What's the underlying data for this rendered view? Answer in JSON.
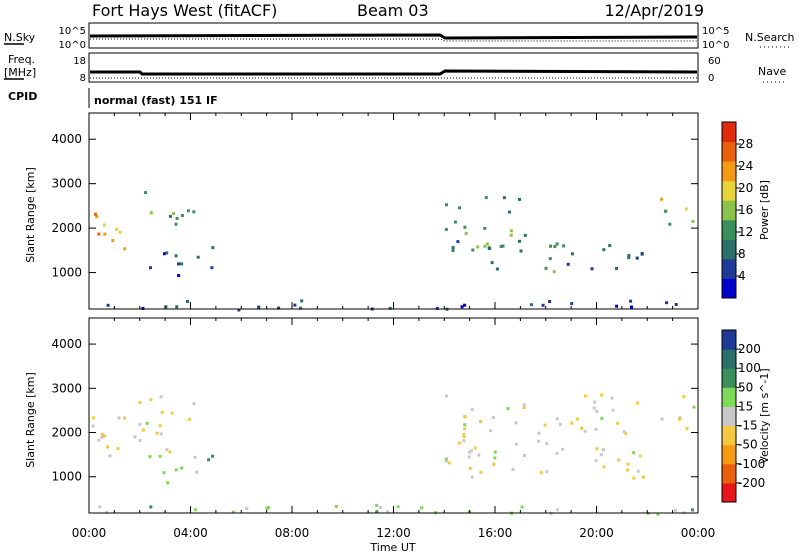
{
  "header": {
    "title": "Fort Hays West (fitACF)",
    "beam": "Beam 03",
    "date": "12/Apr/2019"
  },
  "status_panels": {
    "nsky_label": "N.Sky",
    "nsky_ticks": [
      "10^5",
      "10^0"
    ],
    "nsearch_label": "N.Search",
    "nsearch_ticks": [
      "10^5",
      "10^0"
    ],
    "freq_label_line1": "Freq.",
    "freq_label_line2": "[MHz]",
    "freq_ticks": [
      "18",
      "8"
    ],
    "nave_label": "Nave",
    "nave_ticks": [
      "60",
      "0"
    ],
    "cpid_label": "CPID",
    "cpid_value": "normal (fast) 151 IF"
  },
  "chart_data": [
    {
      "type": "heatmap",
      "name": "power",
      "ylabel": "Slant Range [km]",
      "yticks": [
        "4000",
        "3000",
        "2000",
        "1000"
      ],
      "yvalues": [
        4000,
        3000,
        2000,
        1000
      ],
      "ylim": [
        180,
        4590
      ],
      "xlim": [
        0,
        24
      ],
      "colorbar_label": "Power [dB]",
      "colorbar_ticks": [
        "28",
        "24",
        "20",
        "16",
        "12",
        "8",
        "4"
      ],
      "colorbar_values": [
        28,
        24,
        20,
        16,
        12,
        8,
        4
      ],
      "colorbar_range": [
        0,
        32
      ],
      "colormap": [
        "#0000cc",
        "#1d3a96",
        "#2a6f6a",
        "#3b8f5a",
        "#8bc34a",
        "#e6d23a",
        "#f39c12",
        "#e8600a",
        "#e02a0a"
      ],
      "regions": [
        {
          "t": [
            0.1,
            2.0
          ],
          "r": [
            1500,
            2400
          ],
          "dB": 22
        },
        {
          "t": [
            2.0,
            4.1
          ],
          "r": [
            2000,
            2900
          ],
          "dB": 14
        },
        {
          "t": [
            2.3,
            4.9
          ],
          "r": [
            900,
            1650
          ],
          "dB": 7
        },
        {
          "t": [
            14.0,
            17.5
          ],
          "r": [
            1500,
            2900
          ],
          "dB": 12
        },
        {
          "t": [
            15.5,
            21.8
          ],
          "r": [
            1000,
            1700
          ],
          "dB": 10
        },
        {
          "t": [
            22.3,
            23.9
          ],
          "r": [
            2100,
            2900
          ],
          "dB": 18
        },
        {
          "t": [
            0.0,
            24.0
          ],
          "r": [
            180,
            400
          ],
          "dB": 6
        }
      ]
    },
    {
      "type": "heatmap",
      "name": "velocity",
      "ylabel": "Slant Range [km]",
      "yticks": [
        "4000",
        "3000",
        "2000",
        "1000"
      ],
      "yvalues": [
        4000,
        3000,
        2000,
        1000
      ],
      "ylim": [
        180,
        4590
      ],
      "xlim": [
        0,
        24
      ],
      "xlabel": "Time UT",
      "xticks": [
        "00:00",
        "04:00",
        "08:00",
        "12:00",
        "16:00",
        "20:00",
        "00:00"
      ],
      "xvalues": [
        0,
        4,
        8,
        12,
        16,
        20,
        24
      ],
      "colorbar_label": "Velocity [m s^-1]",
      "colorbar_ticks": [
        "200",
        "100",
        "50",
        "15",
        "-15",
        "-50",
        "-100",
        "-200"
      ],
      "colorbar_values": [
        200,
        100,
        50,
        15,
        -15,
        -50,
        -100,
        -200
      ],
      "colormap": [
        "#e8141a",
        "#e8600a",
        "#f39c12",
        "#f5c842",
        "#c8c8c8",
        "#7ed957",
        "#3b8f5a",
        "#2a6f6a",
        "#1d3a96"
      ],
      "regions": [
        {
          "t": [
            0.1,
            4.1
          ],
          "r": [
            1500,
            2900
          ],
          "v": -10
        },
        {
          "t": [
            2.3,
            4.9
          ],
          "r": [
            900,
            1650
          ],
          "v": 30
        },
        {
          "t": [
            14.0,
            21.8
          ],
          "r": [
            1000,
            2900
          ],
          "v": -5
        },
        {
          "t": [
            22.3,
            23.9
          ],
          "r": [
            2100,
            2900
          ],
          "v": -10
        },
        {
          "t": [
            0.0,
            24.0
          ],
          "r": [
            180,
            400
          ],
          "v": 25
        }
      ]
    }
  ]
}
